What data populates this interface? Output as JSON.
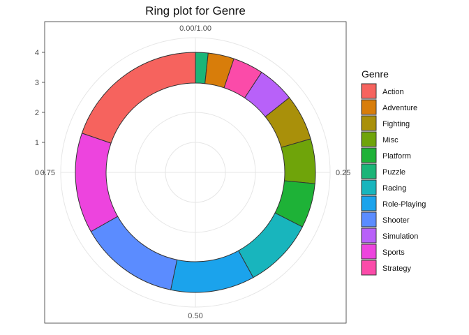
{
  "chart_data": {
    "type": "pie",
    "title": "Ring plot for Genre",
    "legend": {
      "title": "Genre",
      "position": "right"
    },
    "y_ticks": [
      "0",
      "1",
      "2",
      "3",
      "4"
    ],
    "angle_ticks": [
      {
        "value": 0,
        "label": "0.00/1.00"
      },
      {
        "value": 0.25,
        "label": "0.25"
      },
      {
        "value": 0.5,
        "label": "0.50"
      },
      {
        "value": 0.75,
        "label": "0.75"
      }
    ],
    "grid": true,
    "slices": [
      {
        "name": "Puzzle",
        "value": 0.017,
        "color": "#1BB578"
      },
      {
        "name": "Adventure",
        "value": 0.035,
        "color": "#D87D0A"
      },
      {
        "name": "Strategy",
        "value": 0.041,
        "color": "#FB4BA9"
      },
      {
        "name": "Simulation",
        "value": 0.05,
        "color": "#B861F9"
      },
      {
        "name": "Fighting",
        "value": 0.062,
        "color": "#A9900A"
      },
      {
        "name": "Misc",
        "value": 0.06,
        "color": "#6FA40A"
      },
      {
        "name": "Platform",
        "value": 0.06,
        "color": "#1EB237"
      },
      {
        "name": "Racing",
        "value": 0.095,
        "color": "#18B5BD"
      },
      {
        "name": "Role-Playing",
        "value": 0.113,
        "color": "#1BA3EC"
      },
      {
        "name": "Shooter",
        "value": 0.135,
        "color": "#5B8CFF"
      },
      {
        "name": "Sports",
        "value": 0.135,
        "color": "#ED44DE"
      },
      {
        "name": "Action",
        "value": 0.197,
        "color": "#F6635E"
      }
    ],
    "legend_order": [
      "Action",
      "Adventure",
      "Fighting",
      "Misc",
      "Platform",
      "Puzzle",
      "Racing",
      "Role-Playing",
      "Shooter",
      "Simulation",
      "Sports",
      "Strategy"
    ]
  }
}
